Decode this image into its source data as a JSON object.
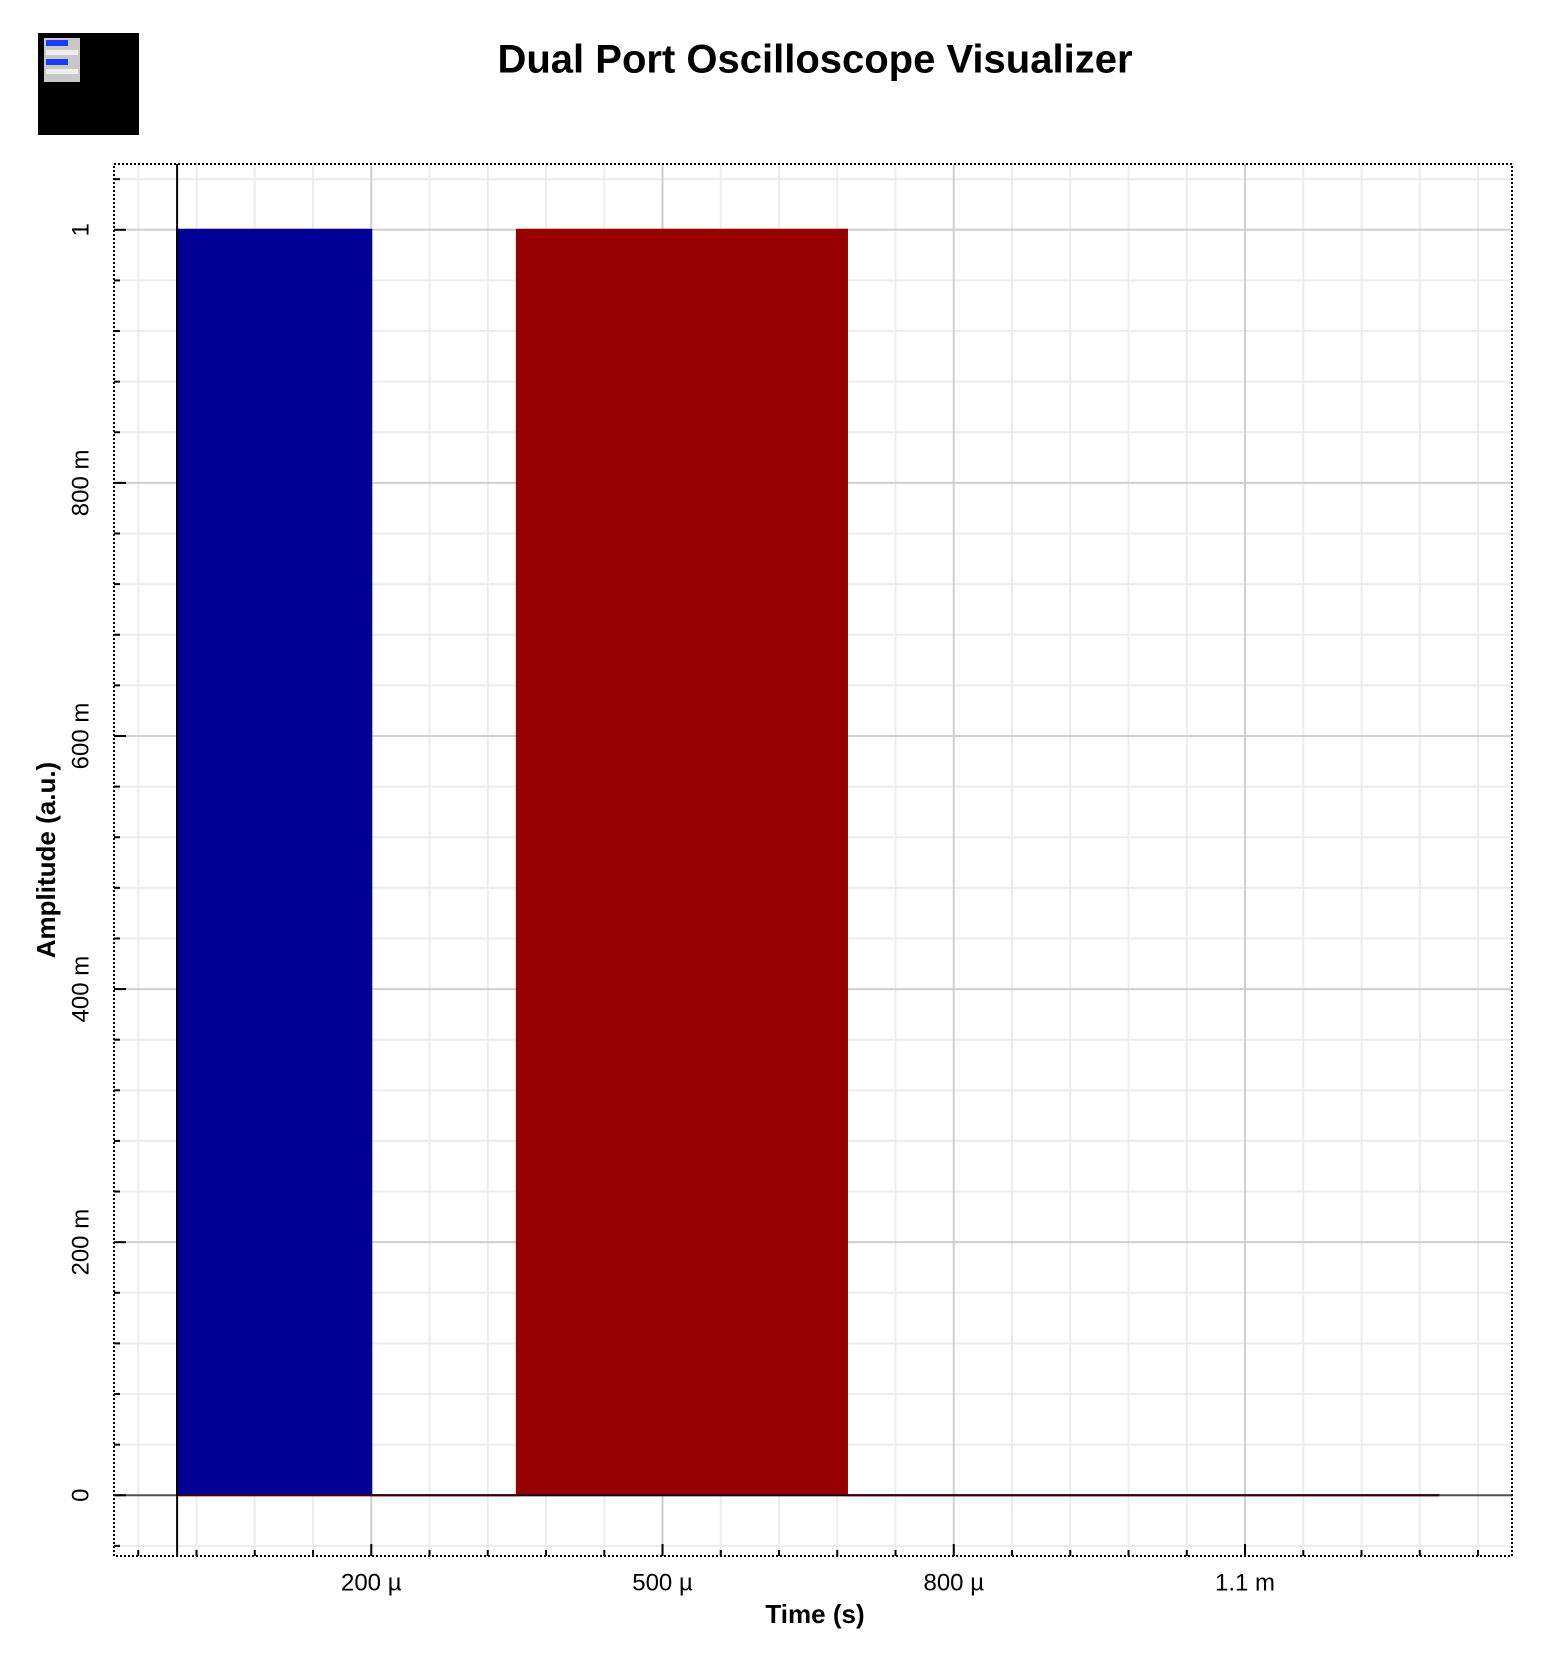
{
  "chart_data": {
    "type": "area",
    "title": "Dual Port Oscilloscope Visualizer",
    "x_label": "Time (s)",
    "y_label": "Amplitude (a.u.)",
    "x": [
      0,
      0,
      0.0002,
      0.0002,
      0.00035,
      0.00035,
      0.00069,
      0.00069,
      0.0013
    ],
    "series": [
      {
        "color": "#000096",
        "values": [
          0,
          1,
          1,
          0,
          0,
          0,
          0,
          0,
          0
        ]
      },
      {
        "color": "#960000",
        "values": [
          0,
          0,
          0,
          0,
          0,
          1,
          1,
          0,
          0
        ]
      }
    ],
    "xlim": [
      -6.5e-05,
      0.001375
    ],
    "xticks": [
      {
        "value": 0.0002,
        "label": "200 µ"
      },
      {
        "value": 0.0005,
        "label": "500 µ"
      },
      {
        "value": 0.0008,
        "label": "800 µ"
      },
      {
        "value": 0.0011,
        "label": "1.1 m"
      }
    ],
    "ylim": [
      -0.048,
      1.052
    ],
    "yticks": [
      0,
      {
        "value": 0.2,
        "label": "200 m"
      },
      {
        "value": 0.4,
        "label": "400 m"
      },
      {
        "value": 0.6,
        "label": "600 m"
      },
      {
        "value": 0.8,
        "label": "800 m"
      },
      1
    ],
    "grid": true
  }
}
